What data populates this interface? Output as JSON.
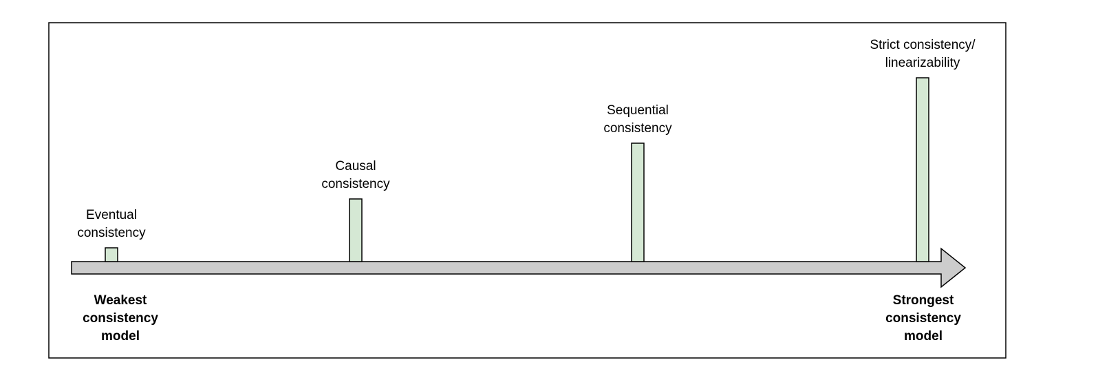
{
  "colors": {
    "frame_stroke": "#000000",
    "arrow_fill": "#cccccc",
    "arrow_stroke": "#000000",
    "bar_fill": "#d5e8d4",
    "bar_stroke": "#000000"
  },
  "models": [
    {
      "label_lines": [
        "Eventual",
        "consistency"
      ],
      "strength": 1
    },
    {
      "label_lines": [
        "Causal",
        "consistency"
      ],
      "strength": 2
    },
    {
      "label_lines": [
        "Sequential",
        "consistency"
      ],
      "strength": 3
    },
    {
      "label_lines": [
        "Strict consistency/",
        "linearizability"
      ],
      "strength": 4
    }
  ],
  "axis": {
    "weakest_lines": [
      "Weakest",
      "consistency",
      "model"
    ],
    "strongest_lines": [
      "Strongest",
      "consistency",
      "model"
    ]
  }
}
